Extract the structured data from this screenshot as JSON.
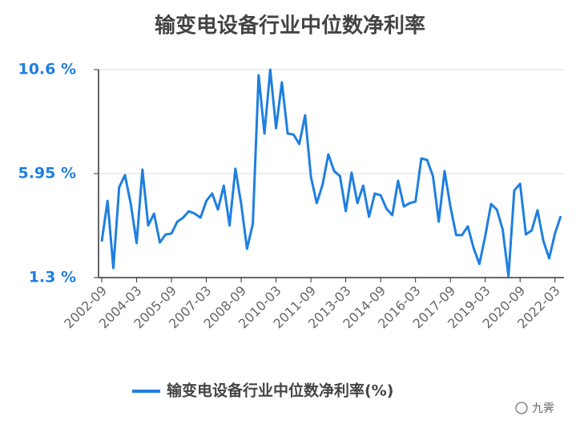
{
  "chart_data": {
    "type": "line",
    "title": "输变电设备行业中位数净利率",
    "categories": [
      "2002-09",
      null,
      null,
      null,
      null,
      null,
      "2004-03",
      null,
      null,
      null,
      null,
      null,
      "2005-09",
      null,
      null,
      null,
      null,
      null,
      "2007-03",
      null,
      null,
      null,
      null,
      null,
      "2008-09",
      null,
      null,
      null,
      null,
      null,
      "2010-03",
      null,
      null,
      null,
      null,
      null,
      "2011-09",
      null,
      null,
      null,
      null,
      null,
      "2013-03",
      null,
      null,
      null,
      null,
      null,
      "2014-09",
      null,
      null,
      null,
      null,
      null,
      "2016-03",
      null,
      null,
      null,
      null,
      null,
      "2017-09",
      null,
      null,
      null,
      null,
      null,
      "2019-03",
      null,
      null,
      null,
      null,
      null,
      "2020-09",
      null,
      null,
      null,
      null,
      null,
      "2022-03",
      null
    ],
    "series": [
      {
        "name": "输变电设备行业中位数净利率(%)",
        "color": "#1f7fe0",
        "values": [
          2.91,
          4.73,
          1.73,
          5.34,
          5.88,
          4.59,
          2.84,
          6.13,
          3.63,
          4.16,
          2.87,
          3.23,
          3.27,
          3.8,
          3.98,
          4.27,
          4.16,
          3.98,
          4.73,
          5.06,
          4.34,
          5.41,
          3.63,
          6.17,
          4.59,
          2.59,
          3.7,
          10.35,
          7.74,
          10.6,
          7.98,
          10.03,
          7.74,
          7.7,
          7.27,
          8.56,
          5.81,
          4.63,
          5.45,
          6.81,
          6.06,
          5.84,
          4.27,
          5.99,
          4.63,
          5.41,
          4.02,
          5.06,
          4.98,
          4.38,
          4.09,
          5.63,
          4.48,
          4.63,
          4.7,
          6.63,
          6.56,
          5.84,
          3.8,
          6.06,
          4.48,
          3.2,
          3.2,
          3.59,
          2.62,
          1.91,
          3.16,
          4.59,
          4.34,
          3.45,
          1.37,
          5.2,
          5.49,
          3.23,
          3.41,
          4.31,
          2.95,
          2.16,
          3.27,
          4.05
        ]
      }
    ],
    "ylim": [
      1.3,
      10.6
    ],
    "yticks": [
      {
        "value": 1.3,
        "label": "1.3 %"
      },
      {
        "value": 5.95,
        "label": "5.95 %"
      },
      {
        "value": 10.6,
        "label": "10.6 %"
      }
    ],
    "grid": true,
    "legend": "bottom"
  },
  "watermark": "九霁"
}
